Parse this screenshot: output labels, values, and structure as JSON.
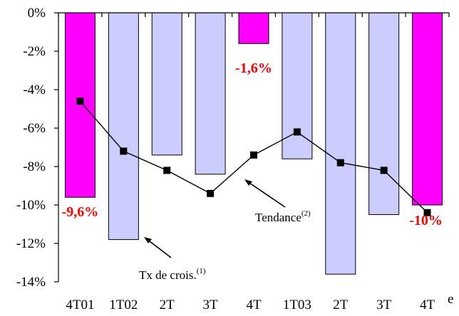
{
  "chart_data": {
    "type": "bar",
    "categories": [
      "4T01",
      "1T02",
      "2T",
      "3T",
      "4T",
      "1T03",
      "2T",
      "3T",
      "4T"
    ],
    "axis_suffix": "e",
    "ylim": [
      -14,
      0
    ],
    "yticks": [
      "0%",
      "-2%",
      "-4%",
      "-6%",
      "-8%",
      "-10%",
      "-12%",
      "-14%"
    ],
    "series": [
      {
        "name": "Tx de crois.",
        "values": [
          -9.6,
          -11.8,
          -7.4,
          -8.4,
          -1.6,
          -7.6,
          -13.6,
          -10.5,
          -10.0
        ],
        "bar_colors": [
          "#ff00ff",
          "#ccccff",
          "#ccccff",
          "#ccccff",
          "#ff00ff",
          "#ccccff",
          "#ccccff",
          "#ccccff",
          "#ff00ff"
        ]
      },
      {
        "name": "Tendance",
        "values": [
          -4.6,
          -7.2,
          -8.2,
          -9.4,
          -7.4,
          -6.2,
          -7.8,
          -8.2,
          -10.4
        ]
      }
    ],
    "data_labels": [
      {
        "index": 0,
        "text": "-9,6%"
      },
      {
        "index": 4,
        "text": "-1,6%"
      },
      {
        "index": 8,
        "text": "-10%"
      }
    ],
    "annotations": {
      "growth": {
        "text": "Tx de crois.",
        "sup": "(1)"
      },
      "trend": {
        "text": "Tendance",
        "sup": "(2)"
      }
    },
    "grid": false,
    "colors": {
      "highlight": "#ff00ff",
      "bar": "#ccccff",
      "label": "#ff0000",
      "line": "#000000"
    }
  }
}
